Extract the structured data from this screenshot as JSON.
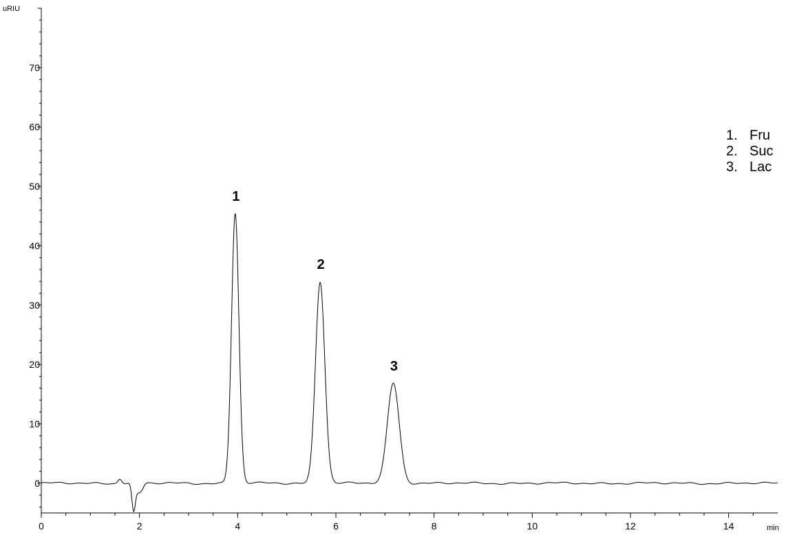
{
  "chart_data": {
    "type": "line",
    "title": "",
    "xlabel": "",
    "ylabel": "",
    "x_unit": "min",
    "y_unit": "uRIU",
    "xlim": [
      0,
      15
    ],
    "ylim": [
      -5,
      80
    ],
    "x_ticks": [
      0,
      2,
      4,
      6,
      8,
      10,
      12,
      14
    ],
    "y_ticks": [
      0,
      10,
      20,
      30,
      40,
      50,
      60,
      70
    ],
    "grid": false,
    "baseline_noise": 0.15,
    "system_peak": [
      {
        "t": 1.6,
        "h": 0.8,
        "w": 0.04
      },
      {
        "t": 1.88,
        "h": -4.6,
        "w": 0.035
      },
      {
        "t": 1.97,
        "h": -1.5,
        "w": 0.05
      },
      {
        "t": 2.05,
        "h": -0.8,
        "w": 0.04
      }
    ],
    "peaks": [
      {
        "label": "1",
        "retention_time": 3.95,
        "height": 45.5,
        "width": 0.075
      },
      {
        "label": "2",
        "retention_time": 5.68,
        "height": 34.0,
        "width": 0.095
      },
      {
        "label": "3",
        "retention_time": 7.17,
        "height": 16.9,
        "width": 0.12
      }
    ],
    "legend": {
      "placement": "top-right",
      "entries": [
        {
          "number": "1.",
          "name": "Fru"
        },
        {
          "number": "2.",
          "name": "Suc"
        },
        {
          "number": "3.",
          "name": "Lac"
        }
      ]
    }
  }
}
